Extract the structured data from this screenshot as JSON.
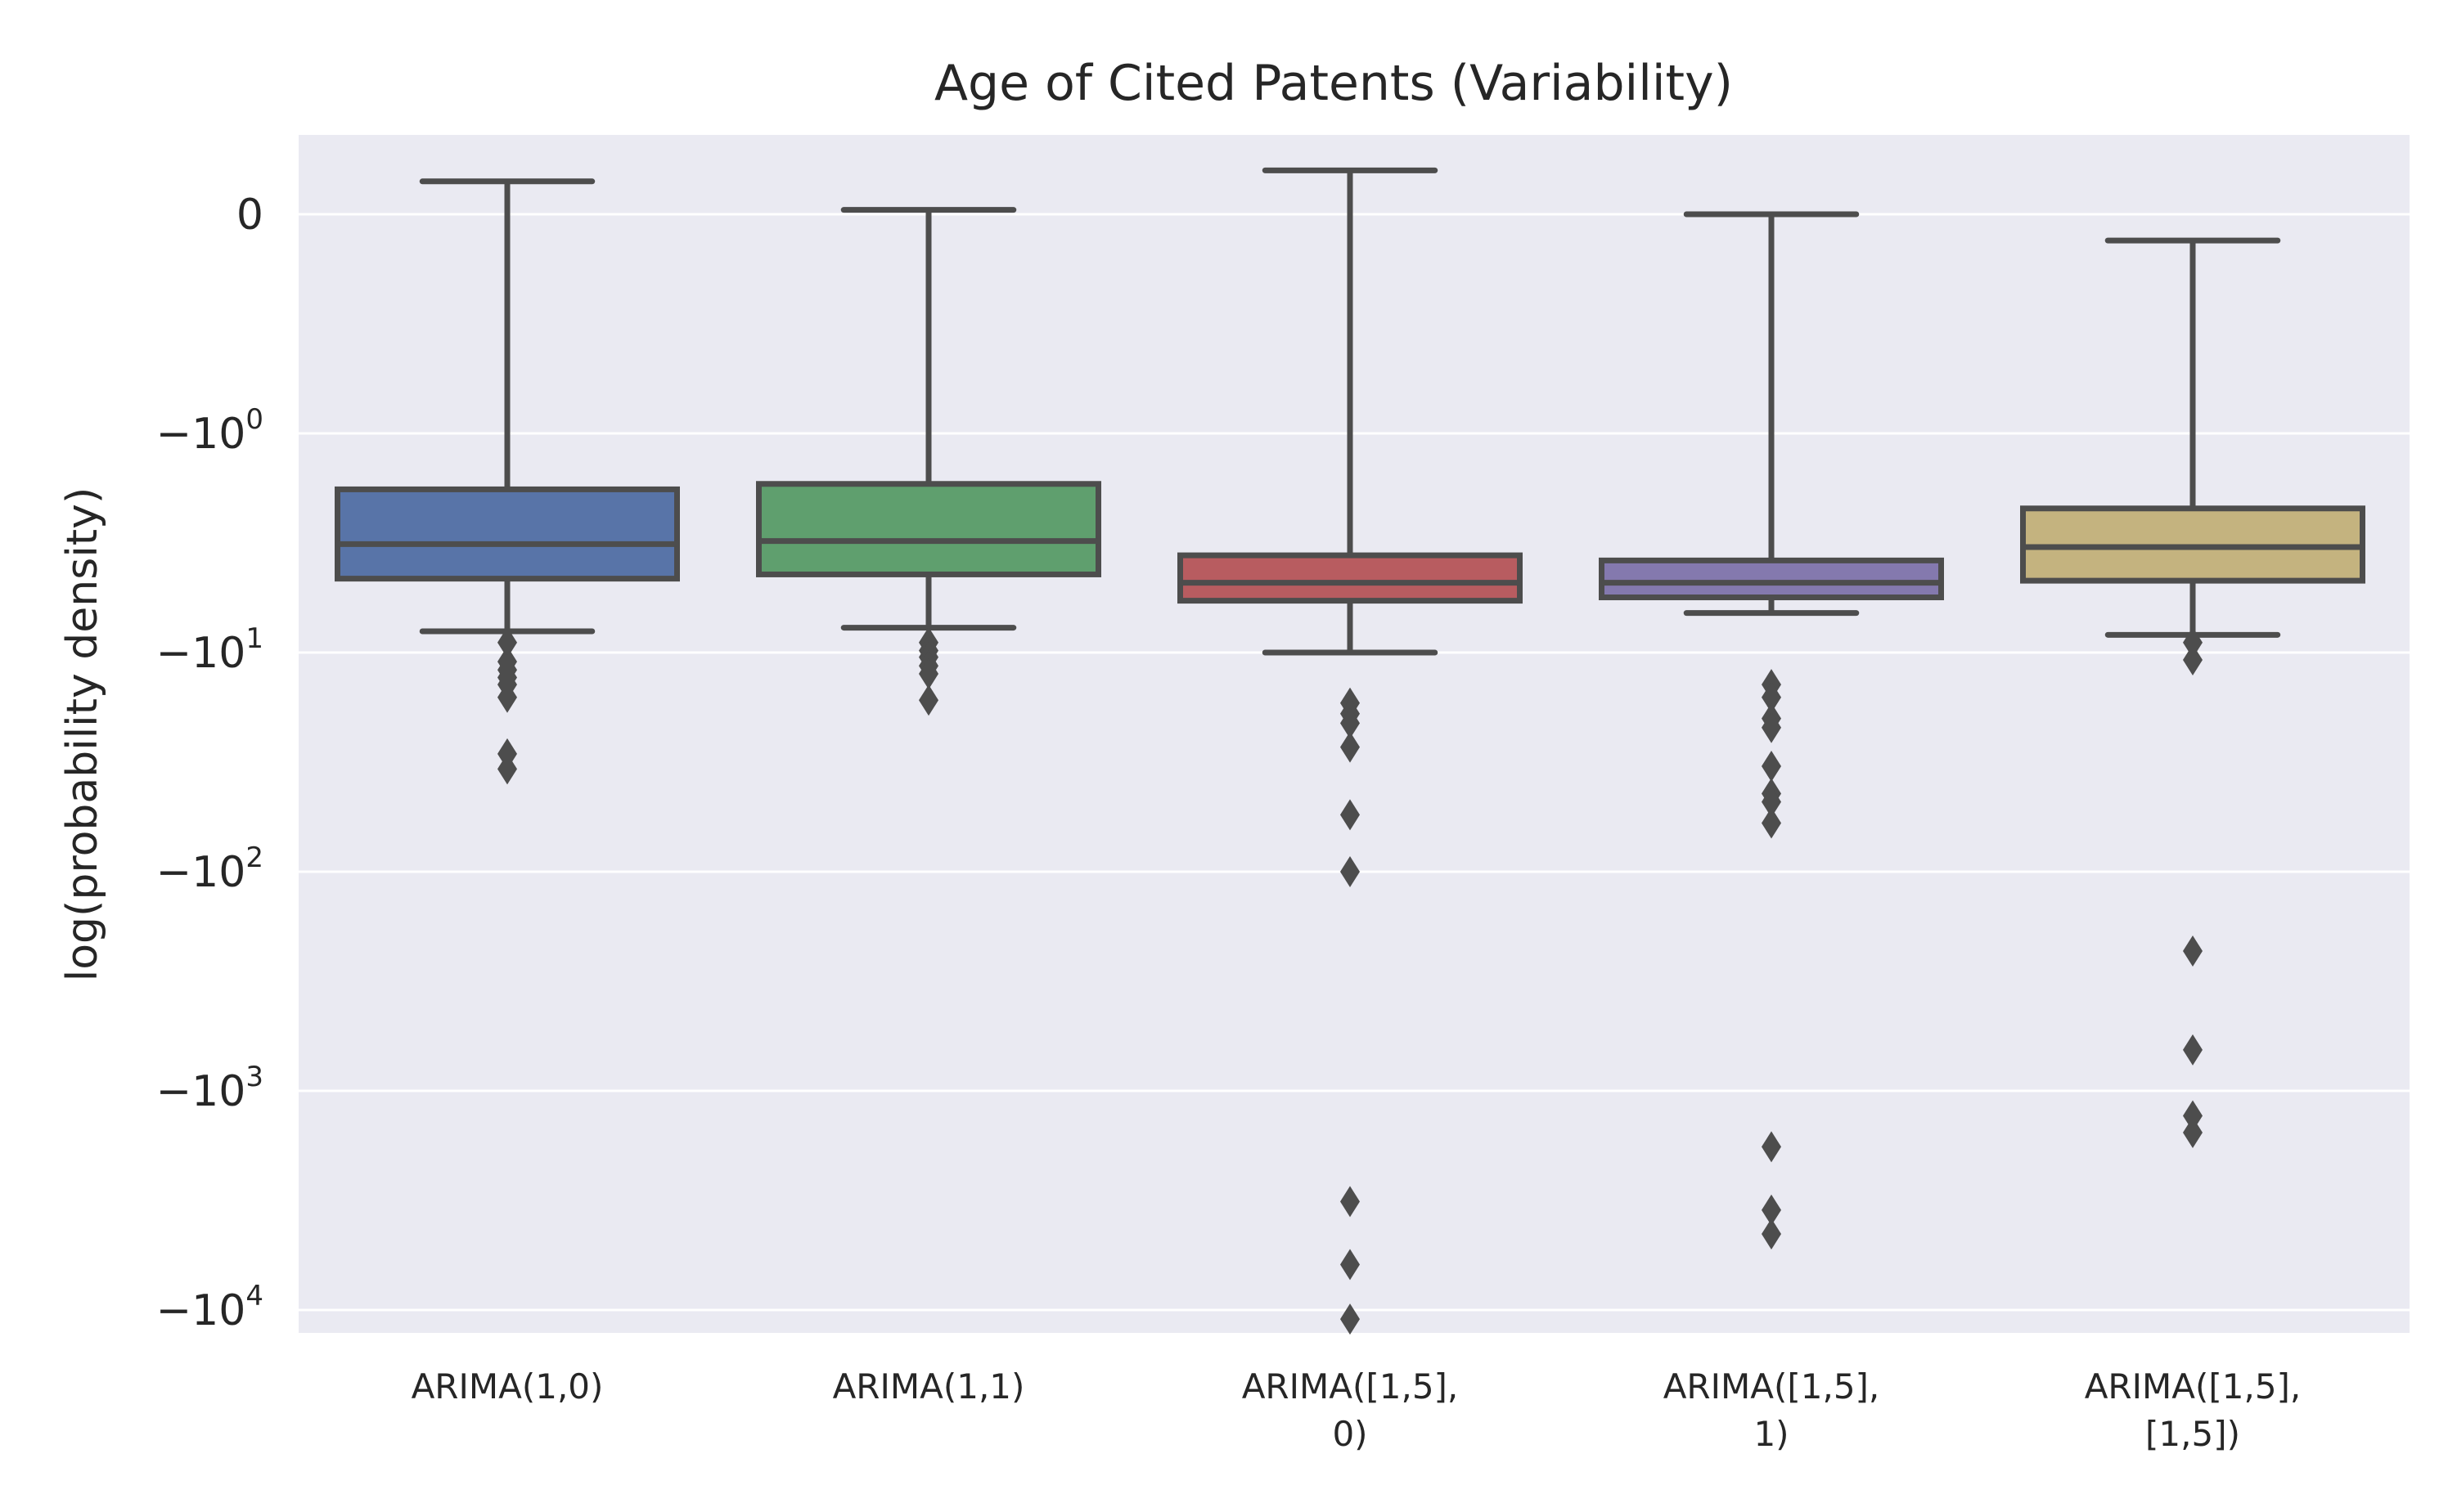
{
  "chart_data": {
    "type": "boxplot",
    "title": "Age of Cited Patents (Variability)",
    "xlabel": "",
    "ylabel": "log(probability density)",
    "y_scale": "symlog",
    "y_ticks": [
      {
        "value": 0,
        "base": "0",
        "exp": ""
      },
      {
        "value": -1,
        "base": "−10",
        "exp": "0"
      },
      {
        "value": -10,
        "base": "−10",
        "exp": "1"
      },
      {
        "value": -100,
        "base": "−10",
        "exp": "2"
      },
      {
        "value": -1000,
        "base": "−10",
        "exp": "3"
      },
      {
        "value": -10000,
        "base": "−10",
        "exp": "4"
      }
    ],
    "ylim": [
      -15000,
      0.5
    ],
    "grid": true,
    "background": "#eaeaf2",
    "edge_color": "#4d4d4d",
    "categories": [
      {
        "lines": [
          "ARIMA(1,0)"
        ]
      },
      {
        "lines": [
          "ARIMA(1,1)"
        ]
      },
      {
        "lines": [
          "ARIMA([1,5],",
          "0)"
        ]
      },
      {
        "lines": [
          "ARIMA([1,5],",
          "1)"
        ]
      },
      {
        "lines": [
          "ARIMA([1,5],",
          "[1,5])"
        ]
      }
    ],
    "boxes": [
      {
        "color": "#5874a8",
        "whisker_high": 0.15,
        "q3": -1.8,
        "median": -3.2,
        "q1": -4.6,
        "whisker_low": -8.0,
        "outliers": [
          -9.0,
          -11.0,
          -12.0,
          -13.0,
          -14.0,
          -16.0,
          -29.0,
          -34.0
        ]
      },
      {
        "color": "#5f9f6e",
        "whisker_high": 0.02,
        "q3": -1.7,
        "median": -3.1,
        "q1": -4.4,
        "whisker_low": -7.7,
        "outliers": [
          -9.0,
          -9.8,
          -10.5,
          -11.5,
          -12.5,
          -16.5
        ]
      },
      {
        "color": "#b85c60",
        "whisker_high": 0.2,
        "q3": -3.6,
        "median": -4.8,
        "q1": -5.8,
        "whisker_low": -10.0,
        "outliers": [
          -17.0,
          -19.0,
          -21.0,
          -27.0,
          -55.0,
          -100.0,
          -3200.0,
          -6200.0,
          -11000.0
        ]
      },
      {
        "color": "#8479ae",
        "whisker_high": 0.0,
        "q3": -3.8,
        "median": -4.8,
        "q1": -5.6,
        "whisker_low": -6.6,
        "outliers": [
          -14.0,
          -16.0,
          -20.0,
          -22.0,
          -33.0,
          -44.0,
          -48.0,
          -60.0,
          -1800.0,
          -3500.0,
          -4500.0
        ]
      },
      {
        "color": "#c4b37f",
        "whisker_high": -0.12,
        "q3": -2.2,
        "median": -3.3,
        "q1": -4.7,
        "whisker_low": -8.3,
        "outliers": [
          -9.0,
          -10.8,
          -230.0,
          -650.0,
          -1300.0,
          -1550.0
        ]
      }
    ]
  }
}
